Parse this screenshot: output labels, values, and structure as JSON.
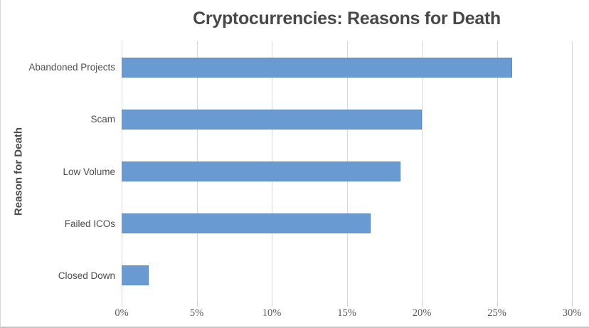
{
  "chart_data": {
    "type": "bar",
    "orientation": "horizontal",
    "title": "Cryptocurrencies: Reasons for Death",
    "xlabel": "",
    "ylabel": "Reason for Death",
    "categories": [
      "Abandoned Projects",
      "Scam",
      "Low Volume",
      "Failed ICOs",
      "Closed Down"
    ],
    "values": [
      26,
      20,
      18.6,
      16.6,
      1.8
    ],
    "unit": "%",
    "xlim": [
      0,
      30
    ],
    "xticks": [
      0,
      5,
      10,
      15,
      20,
      25,
      30
    ],
    "xtick_labels": [
      "0%",
      "5%",
      "10%",
      "15%",
      "20%",
      "25%",
      "30%"
    ],
    "grid": "vertical",
    "legend": false,
    "colors": {
      "bar": "#699BD2",
      "gridline": "#d9d9d9",
      "title_text": "#484848",
      "category_text": "#4d4d4d",
      "tick_text": "#595959",
      "chart_border": "#d6d6d6"
    }
  }
}
